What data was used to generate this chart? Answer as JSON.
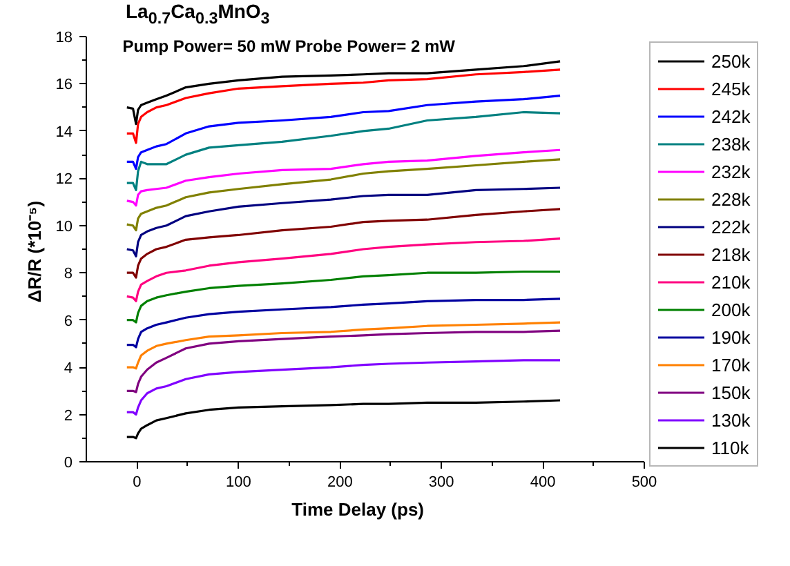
{
  "chart_data": {
    "type": "line",
    "title": "La$_{0.7}$Ca$_{0.3}$MnO$_{3}$",
    "subtitle": "Pump Power= 50 mW    Probe Power= 2 mW",
    "xlabel": "Time  Delay   (ps)",
    "ylabel": "ΔR/R  (*10⁻⁵)",
    "xlim": [
      -50,
      500
    ],
    "xticks": [
      0,
      {
        "value": 50,
        "label": null
      },
      100,
      {
        "value": 150,
        "label": null
      },
      200,
      {
        "value": 250,
        "label": null
      },
      300,
      {
        "value": 350,
        "label": null
      },
      400,
      {
        "value": 450,
        "label": null
      },
      500
    ],
    "ylim": [
      0,
      18
    ],
    "yticks": [
      0,
      {
        "value": 1,
        "label": null
      },
      2,
      {
        "value": 3,
        "label": null
      },
      4,
      {
        "value": 5,
        "label": null
      },
      6,
      {
        "value": 7,
        "label": null
      },
      8,
      {
        "value": 9,
        "label": null
      },
      10,
      {
        "value": 11,
        "label": null
      },
      12,
      {
        "value": 13,
        "label": null
      },
      14,
      {
        "value": 15,
        "label": null
      },
      16,
      {
        "value": 17,
        "label": null
      },
      18
    ],
    "grid": false,
    "legend": "right",
    "x": [
      -10,
      -4,
      -1,
      1,
      4,
      10,
      19,
      29,
      48,
      71,
      100,
      143,
      191,
      223,
      248,
      286,
      334,
      381,
      417
    ],
    "series": [
      {
        "name": "250k",
        "color": "#000000",
        "values": [
          15.0,
          14.95,
          14.3,
          14.9,
          15.1,
          15.2,
          15.35,
          15.5,
          15.85,
          16.0,
          16.15,
          16.3,
          16.35,
          16.4,
          16.45,
          16.45,
          16.6,
          16.75,
          16.95
        ]
      },
      {
        "name": "245k",
        "color": "#ff0000",
        "values": [
          13.9,
          13.9,
          13.5,
          14.3,
          14.6,
          14.8,
          15.0,
          15.1,
          15.4,
          15.6,
          15.8,
          15.9,
          16.0,
          16.05,
          16.15,
          16.2,
          16.4,
          16.5,
          16.6
        ]
      },
      {
        "name": "242k",
        "color": "#0000ff",
        "values": [
          12.7,
          12.7,
          12.4,
          12.9,
          13.1,
          13.2,
          13.35,
          13.45,
          13.9,
          14.2,
          14.35,
          14.45,
          14.6,
          14.8,
          14.85,
          15.1,
          15.25,
          15.35,
          15.5
        ]
      },
      {
        "name": "238k",
        "color": "#008080",
        "values": [
          11.8,
          11.8,
          11.5,
          12.3,
          12.7,
          12.6,
          12.6,
          12.6,
          13.0,
          13.3,
          13.4,
          13.55,
          13.8,
          14.0,
          14.1,
          14.45,
          14.6,
          14.8,
          14.75
        ]
      },
      {
        "name": "232k",
        "color": "#ff00ff",
        "values": [
          11.05,
          11.0,
          10.85,
          11.3,
          11.45,
          11.5,
          11.55,
          11.6,
          11.9,
          12.05,
          12.2,
          12.35,
          12.4,
          12.6,
          12.7,
          12.75,
          12.95,
          13.1,
          13.2
        ]
      },
      {
        "name": "228k",
        "color": "#808000",
        "values": [
          10.05,
          10.0,
          9.8,
          10.3,
          10.5,
          10.6,
          10.75,
          10.85,
          11.2,
          11.4,
          11.55,
          11.75,
          11.95,
          12.2,
          12.3,
          12.4,
          12.55,
          12.7,
          12.8
        ]
      },
      {
        "name": "222k",
        "color": "#000080",
        "values": [
          9.0,
          8.95,
          8.7,
          9.3,
          9.6,
          9.75,
          9.9,
          10.0,
          10.4,
          10.6,
          10.8,
          10.95,
          11.1,
          11.25,
          11.3,
          11.3,
          11.5,
          11.55,
          11.6
        ]
      },
      {
        "name": "218k",
        "color": "#800000",
        "values": [
          8.0,
          8.0,
          7.8,
          8.3,
          8.6,
          8.8,
          9.0,
          9.1,
          9.4,
          9.5,
          9.6,
          9.8,
          9.95,
          10.15,
          10.2,
          10.25,
          10.45,
          10.6,
          10.7
        ]
      },
      {
        "name": "210k",
        "color": "#ff0080",
        "values": [
          7.0,
          6.95,
          6.8,
          7.2,
          7.5,
          7.65,
          7.85,
          8.0,
          8.1,
          8.3,
          8.45,
          8.6,
          8.8,
          9.0,
          9.1,
          9.2,
          9.3,
          9.35,
          9.45
        ]
      },
      {
        "name": "200k",
        "color": "#008000",
        "values": [
          6.0,
          6.0,
          5.9,
          6.3,
          6.6,
          6.8,
          6.95,
          7.05,
          7.2,
          7.35,
          7.45,
          7.55,
          7.7,
          7.85,
          7.9,
          8.0,
          8.0,
          8.05,
          8.05
        ]
      },
      {
        "name": "190k",
        "color": "#0000a0",
        "values": [
          4.95,
          4.95,
          4.85,
          5.2,
          5.5,
          5.65,
          5.8,
          5.9,
          6.1,
          6.25,
          6.35,
          6.45,
          6.55,
          6.65,
          6.7,
          6.8,
          6.85,
          6.85,
          6.9
        ]
      },
      {
        "name": "170k",
        "color": "#ff8000",
        "values": [
          4.0,
          4.0,
          3.95,
          4.2,
          4.5,
          4.7,
          4.9,
          5.0,
          5.15,
          5.3,
          5.35,
          5.45,
          5.5,
          5.6,
          5.65,
          5.75,
          5.8,
          5.85,
          5.9
        ]
      },
      {
        "name": "150k",
        "color": "#800080",
        "values": [
          3.0,
          3.0,
          2.95,
          3.3,
          3.6,
          3.9,
          4.2,
          4.4,
          4.8,
          5.0,
          5.1,
          5.2,
          5.3,
          5.35,
          5.4,
          5.45,
          5.5,
          5.5,
          5.55
        ]
      },
      {
        "name": "130k",
        "color": "#8000ff",
        "values": [
          2.1,
          2.1,
          2.0,
          2.3,
          2.6,
          2.9,
          3.1,
          3.2,
          3.5,
          3.7,
          3.8,
          3.9,
          4.0,
          4.1,
          4.15,
          4.2,
          4.25,
          4.3,
          4.3
        ]
      },
      {
        "name": "110k",
        "color": "#000000",
        "values": [
          1.05,
          1.05,
          1.0,
          1.2,
          1.4,
          1.55,
          1.75,
          1.85,
          2.05,
          2.2,
          2.3,
          2.35,
          2.4,
          2.45,
          2.45,
          2.5,
          2.5,
          2.55,
          2.6
        ]
      }
    ]
  }
}
